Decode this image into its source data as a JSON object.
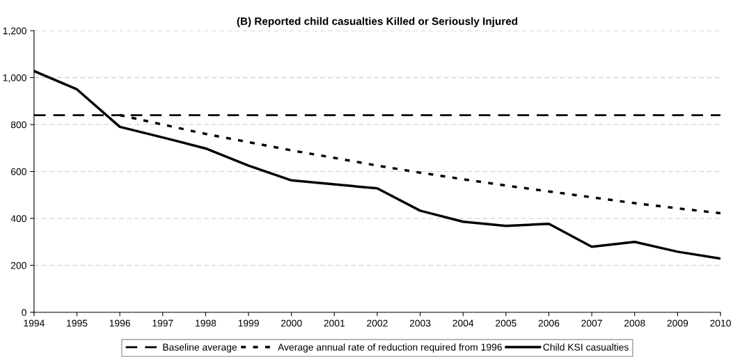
{
  "chart_data": {
    "type": "line",
    "title": "(B) Reported child casualties Killed or Seriously Injured",
    "x": [
      1994,
      1995,
      1996,
      1997,
      1998,
      1999,
      2000,
      2001,
      2002,
      2003,
      2004,
      2005,
      2006,
      2007,
      2008,
      2009,
      2010
    ],
    "series": [
      {
        "name": "Baseline average",
        "color": "#000000",
        "line_style": "dashed",
        "values": [
          840,
          840,
          840,
          840,
          840,
          840,
          840,
          840,
          840,
          840,
          840,
          840,
          840,
          840,
          840,
          840,
          840
        ]
      },
      {
        "name": "Average annual rate of reduction required from 1996",
        "color": "#000000",
        "line_style": "dotted",
        "values": [
          null,
          null,
          840,
          800,
          760,
          725,
          690,
          658,
          625,
          595,
          567,
          540,
          515,
          490,
          465,
          443,
          422
        ]
      },
      {
        "name": "Child KSI casualties",
        "color": "#000000",
        "line_style": "solid",
        "values": [
          1028,
          950,
          790,
          745,
          698,
          625,
          562,
          545,
          528,
          433,
          386,
          368,
          377,
          279,
          300,
          258,
          229
        ]
      }
    ],
    "xlim": [
      1994,
      2010
    ],
    "xticks": [
      1994,
      1995,
      1996,
      1997,
      1998,
      1999,
      2000,
      2001,
      2002,
      2003,
      2004,
      2005,
      2006,
      2007,
      2008,
      2009,
      2010
    ],
    "ylim": [
      0,
      1200
    ],
    "yticks": [
      0,
      {
        "value": 200,
        "label": "200"
      },
      {
        "value": 400,
        "label": "400"
      },
      {
        "value": 600,
        "label": "600"
      },
      {
        "value": 800,
        "label": "800"
      },
      {
        "value": 1000,
        "label": "1,000"
      },
      {
        "value": 1200,
        "label": "1,200"
      }
    ],
    "grid": "y",
    "legend": "bottom",
    "marker": "none"
  }
}
